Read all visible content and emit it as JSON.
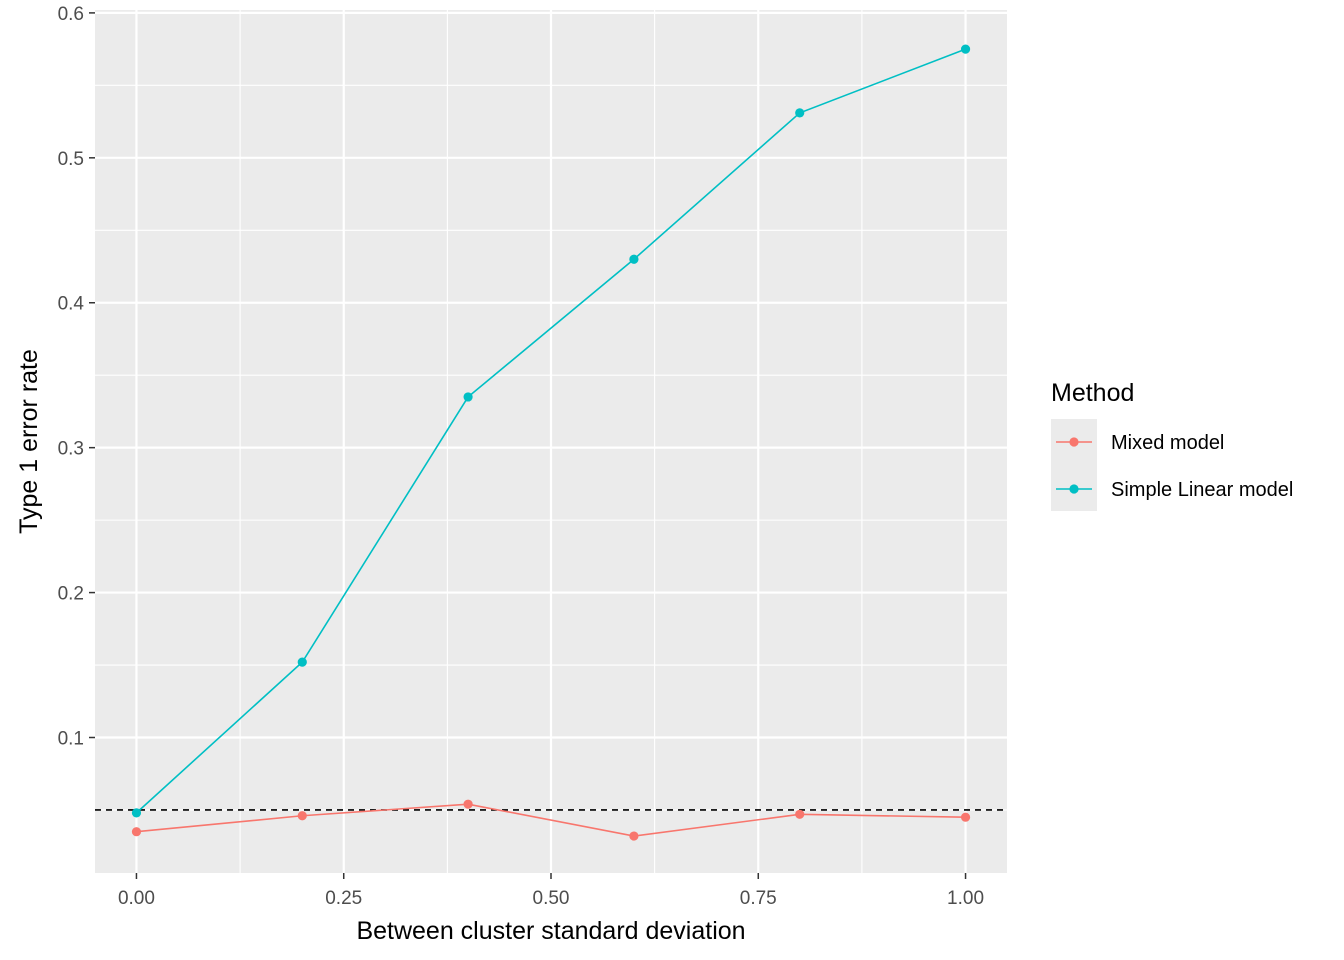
{
  "chart_data": {
    "type": "line",
    "title": "",
    "xlabel": "Between cluster standard deviation",
    "ylabel": "Type 1 error rate",
    "x": [
      0.0,
      0.2,
      0.4,
      0.6,
      0.8,
      1.0
    ],
    "xlim": [
      -0.05,
      1.05
    ],
    "ylim": [
      0.0065,
      0.602
    ],
    "x_ticks": [
      0.0,
      0.25,
      0.5,
      0.75,
      1.0
    ],
    "x_tick_labels": [
      "0.00",
      "0.25",
      "0.50",
      "0.75",
      "1.00"
    ],
    "y_ticks": [
      0.1,
      0.2,
      0.3,
      0.4,
      0.5,
      0.6
    ],
    "y_tick_labels": [
      "0.1",
      "0.2",
      "0.3",
      "0.4",
      "0.5",
      "0.6"
    ],
    "grid": true,
    "panel_background": "#ebebeb",
    "reference_line": {
      "y": 0.05,
      "style": "dashed",
      "color": "#000000"
    },
    "legend": {
      "title": "Method",
      "position": "right"
    },
    "series": [
      {
        "name": "Mixed model",
        "color": "#f8766d",
        "values": [
          0.035,
          0.046,
          0.054,
          0.032,
          0.047,
          0.045
        ]
      },
      {
        "name": "Simple Linear model",
        "color": "#00bfc4",
        "values": [
          0.048,
          0.152,
          0.335,
          0.43,
          0.531,
          0.575
        ]
      }
    ]
  }
}
